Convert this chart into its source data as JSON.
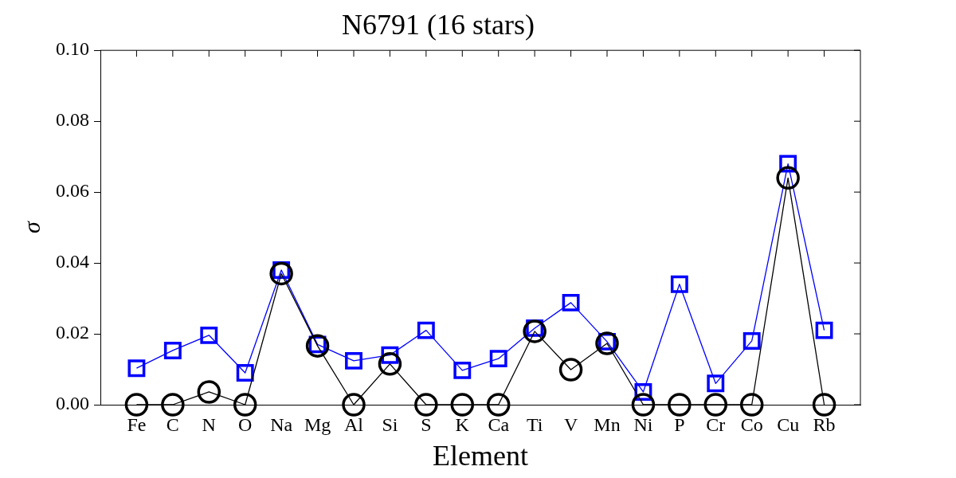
{
  "chart_data": {
    "type": "line",
    "title": "N6791 (16 stars)",
    "xlabel": "Element",
    "ylabel": "σ",
    "categories": [
      "Fe",
      "C",
      "N",
      "O",
      "Na",
      "Mg",
      "Al",
      "Si",
      "S",
      "K",
      "Ca",
      "Ti",
      "V",
      "Mn",
      "Ni",
      "P",
      "Cr",
      "Co",
      "Cu",
      "Rb"
    ],
    "series": [
      {
        "color": "#000000",
        "marker": "circle",
        "values": [
          0,
          0,
          0.0036,
          0,
          0.037,
          0.0166,
          0,
          0.0115,
          0,
          0,
          0,
          0.0207,
          0.0099,
          0.0173,
          0,
          0,
          0,
          0,
          0.064,
          0
        ]
      },
      {
        "color": "#0000ff",
        "marker": "square",
        "values": [
          0.0103,
          0.0153,
          0.0196,
          0.009,
          0.038,
          0.017,
          0.0124,
          0.014,
          0.021,
          0.0097,
          0.013,
          0.0216,
          0.0288,
          0.0178,
          0.0036,
          0.034,
          0.006,
          0.018,
          0.068,
          0.021
        ]
      }
    ],
    "ylim": [
      0,
      0.1
    ],
    "yticks": [
      {
        "value": 0,
        "label": "0.00"
      },
      {
        "value": 0.02,
        "label": "0.02"
      },
      {
        "value": 0.04,
        "label": "0.04"
      },
      {
        "value": 0.06,
        "label": "0.06"
      },
      {
        "value": 0.08,
        "label": "0.08"
      },
      {
        "value": 0.1,
        "label": "0.10"
      }
    ],
    "grid": false,
    "legend": false,
    "line_style": "solid"
  }
}
